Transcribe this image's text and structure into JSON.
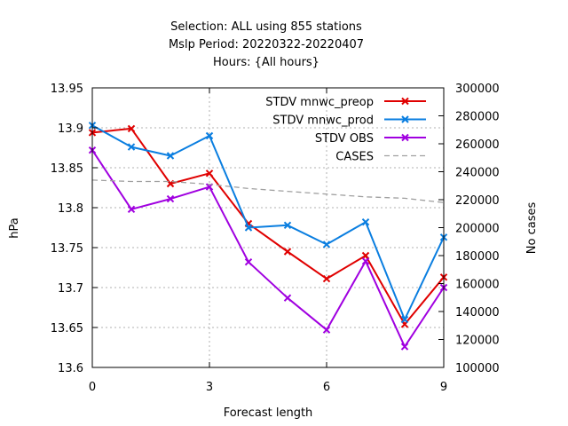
{
  "title": {
    "line1": "Selection: ALL using   855 stations",
    "line2": "Mslp   Period: 20220322-20220407",
    "line3": "Hours: {All hours}"
  },
  "chart_data": {
    "type": "line",
    "xlabel": "Forecast length",
    "ylabel": "hPa",
    "y2label": "No cases",
    "xlim": [
      0,
      9
    ],
    "ylim": [
      13.6,
      13.95
    ],
    "y2lim": [
      100000,
      300000
    ],
    "xticks": [
      "0",
      "3",
      "6",
      "9"
    ],
    "yticks": [
      "13.6",
      "13.65",
      "13.7",
      "13.75",
      "13.8",
      "13.85",
      "13.9",
      "13.95"
    ],
    "y2ticks": [
      "100000",
      "120000",
      "140000",
      "160000",
      "180000",
      "200000",
      "220000",
      "240000",
      "260000",
      "280000",
      "300000"
    ],
    "grid": true,
    "legend_position": "top-right",
    "x": [
      0,
      1,
      2,
      3,
      4,
      5,
      6,
      7,
      8,
      9
    ],
    "series": [
      {
        "name": "STDV mnwc_preop",
        "color": "#e00000",
        "marker": "x",
        "values": [
          13.894,
          13.899,
          13.83,
          13.843,
          13.78,
          13.745,
          13.711,
          13.74,
          13.654,
          13.713
        ]
      },
      {
        "name": "STDV mnwc_prod",
        "color": "#0a7ee0",
        "marker": "x",
        "values": [
          13.903,
          13.876,
          13.865,
          13.89,
          13.775,
          13.778,
          13.754,
          13.782,
          13.66,
          13.763
        ]
      },
      {
        "name": "STDV OBS",
        "color": "#a000e0",
        "marker": "x",
        "values": [
          13.872,
          13.798,
          13.811,
          13.826,
          13.732,
          13.687,
          13.647,
          13.733,
          13.626,
          13.7
        ]
      },
      {
        "name": "CASES",
        "color": "#a0a0a0",
        "dashed": true,
        "axis": "y2",
        "values": [
          234000,
          233000,
          233000,
          231000,
          228000,
          226000,
          224000,
          222000,
          221000,
          218000
        ]
      }
    ]
  }
}
